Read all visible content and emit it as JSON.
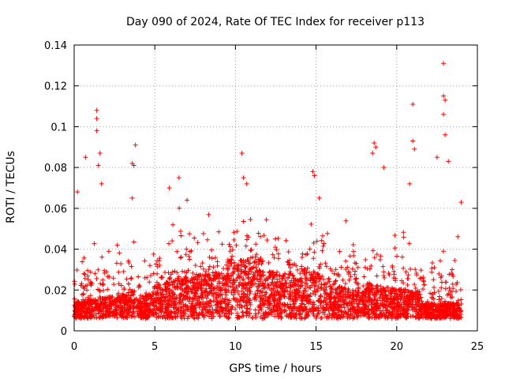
{
  "chart_data": {
    "type": "scatter",
    "title": "Day 090 of 2024, Rate Of TEC Index for receiver p113",
    "xlabel": "GPS time / hours",
    "ylabel": "ROTI / TECUs",
    "xlim": [
      0,
      25
    ],
    "ylim": [
      0,
      0.14
    ],
    "xticks": [
      0,
      5,
      10,
      15,
      20,
      25
    ],
    "xtick_labels": [
      "0",
      "5",
      "10",
      "15",
      "20",
      "25"
    ],
    "yticks": [
      0,
      0.02,
      0.04,
      0.06,
      0.08,
      0.1,
      0.12,
      0.14
    ],
    "ytick_labels": [
      "0",
      "0.02",
      "0.04",
      "0.06",
      "0.08",
      "0.1",
      "0.12",
      "0.14"
    ],
    "grid": true,
    "marker": "+",
    "color": "#ff0000",
    "series": [
      {
        "name": "ROTI",
        "x_range": [
          0,
          24
        ],
        "typical_range": [
          0.005,
          0.035
        ],
        "notable_points": [
          {
            "x": 0.2,
            "y": 0.068
          },
          {
            "x": 0.7,
            "y": 0.085
          },
          {
            "x": 1.4,
            "y": 0.108
          },
          {
            "x": 1.4,
            "y": 0.104
          },
          {
            "x": 1.4,
            "y": 0.098
          },
          {
            "x": 1.6,
            "y": 0.087
          },
          {
            "x": 1.5,
            "y": 0.081
          },
          {
            "x": 1.7,
            "y": 0.072
          },
          {
            "x": 3.6,
            "y": 0.082
          },
          {
            "x": 3.7,
            "y": 0.081
          },
          {
            "x": 3.8,
            "y": 0.091
          },
          {
            "x": 3.6,
            "y": 0.065
          },
          {
            "x": 5.9,
            "y": 0.07
          },
          {
            "x": 6.5,
            "y": 0.075
          },
          {
            "x": 7.0,
            "y": 0.064
          },
          {
            "x": 10.4,
            "y": 0.087
          },
          {
            "x": 10.5,
            "y": 0.075
          },
          {
            "x": 10.7,
            "y": 0.072
          },
          {
            "x": 14.8,
            "y": 0.078
          },
          {
            "x": 14.9,
            "y": 0.076
          },
          {
            "x": 15.2,
            "y": 0.065
          },
          {
            "x": 18.6,
            "y": 0.092
          },
          {
            "x": 18.7,
            "y": 0.09
          },
          {
            "x": 18.5,
            "y": 0.087
          },
          {
            "x": 19.2,
            "y": 0.08
          },
          {
            "x": 21.0,
            "y": 0.111
          },
          {
            "x": 21.0,
            "y": 0.093
          },
          {
            "x": 21.1,
            "y": 0.089
          },
          {
            "x": 20.8,
            "y": 0.072
          },
          {
            "x": 22.5,
            "y": 0.085
          },
          {
            "x": 22.9,
            "y": 0.131
          },
          {
            "x": 22.9,
            "y": 0.115
          },
          {
            "x": 23.0,
            "y": 0.113
          },
          {
            "x": 22.9,
            "y": 0.106
          },
          {
            "x": 23.0,
            "y": 0.096
          },
          {
            "x": 23.2,
            "y": 0.083
          },
          {
            "x": 24.0,
            "y": 0.063
          }
        ]
      }
    ]
  }
}
